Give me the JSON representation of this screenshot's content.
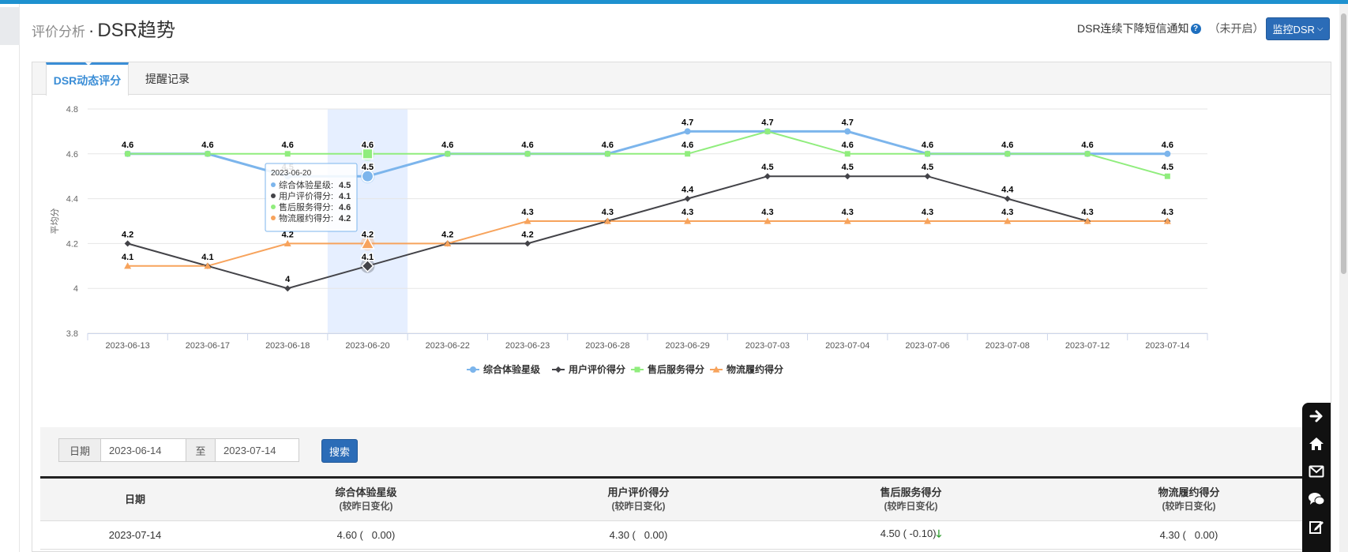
{
  "header": {
    "sub_title": "评价分析",
    "separator": "·",
    "title": "DSR趋势",
    "notify_label": "DSR连续下降短信通知",
    "notify_state": "（未开启）",
    "monitor_button": "监控DSR"
  },
  "tabs": [
    {
      "label": "DSR动态评分",
      "active": true
    },
    {
      "label": "提醒记录",
      "active": false
    }
  ],
  "chart_data": {
    "type": "line",
    "ylabel": "平均分",
    "ylim": [
      3.8,
      4.8
    ],
    "yticks": [
      3.8,
      4,
      4.2,
      4.4,
      4.6,
      4.8
    ],
    "ytick_labels": [
      "3.8",
      "4",
      "4.2",
      "4.4",
      "4.6",
      "4.8"
    ],
    "categories": [
      "2023-06-13",
      "2023-06-17",
      "2023-06-18",
      "2023-06-20",
      "2023-06-22",
      "2023-06-23",
      "2023-06-28",
      "2023-06-29",
      "2023-07-03",
      "2023-07-04",
      "2023-07-06",
      "2023-07-08",
      "2023-07-12",
      "2023-07-14"
    ],
    "grid": true,
    "legend_position": "bottom",
    "highlight_index": 3,
    "series": [
      {
        "name": "综合体验星级",
        "color": "#7cb5ec",
        "marker": "circle",
        "values": [
          4.6,
          4.6,
          4.5,
          4.5,
          4.6,
          4.6,
          4.6,
          4.7,
          4.7,
          4.7,
          4.6,
          4.6,
          4.6,
          4.6
        ]
      },
      {
        "name": "用户评价得分",
        "color": "#434348",
        "marker": "diamond",
        "values": [
          4.2,
          4.1,
          4.0,
          4.1,
          4.2,
          4.2,
          4.3,
          4.4,
          4.5,
          4.5,
          4.5,
          4.4,
          4.3,
          4.3
        ]
      },
      {
        "name": "售后服务得分",
        "color": "#90ed7d",
        "marker": "square",
        "values": [
          4.6,
          4.6,
          4.6,
          4.6,
          4.6,
          4.6,
          4.6,
          4.6,
          4.7,
          4.6,
          4.6,
          4.6,
          4.6,
          4.5
        ]
      },
      {
        "name": "物流履约得分",
        "color": "#f7a35c",
        "marker": "triangle",
        "values": [
          4.1,
          4.1,
          4.2,
          4.2,
          4.2,
          4.3,
          4.3,
          4.3,
          4.3,
          4.3,
          4.3,
          4.3,
          4.3,
          4.3
        ]
      }
    ],
    "tooltip": {
      "title": "2023-06-20",
      "rows": [
        {
          "label": "综合体验星级",
          "value": "4.5"
        },
        {
          "label": "用户评价得分",
          "value": "4.1"
        },
        {
          "label": "售后服务得分",
          "value": "4.6"
        },
        {
          "label": "物流履约得分",
          "value": "4.2"
        }
      ]
    }
  },
  "filter": {
    "date_label": "日期",
    "to_label": "至",
    "start_date": "2023-06-14",
    "end_date": "2023-07-14",
    "search_button": "搜索"
  },
  "table": {
    "headers": [
      {
        "title": "日期",
        "sub": ""
      },
      {
        "title": "综合体验星级",
        "sub": "(较昨日变化)"
      },
      {
        "title": "用户评价得分",
        "sub": "(较昨日变化)"
      },
      {
        "title": "售后服务得分",
        "sub": "(较昨日变化)"
      },
      {
        "title": "物流履约得分",
        "sub": "(较昨日变化)"
      }
    ],
    "rows": [
      {
        "date": "2023-07-14",
        "c1": "4.60 (   0.00)",
        "c2": "4.30 (   0.00)",
        "c3": "4.50 ( -0.10)",
        "c3_arrow": "🡓",
        "c4": "4.30 (   0.00)"
      }
    ]
  },
  "side_tools": [
    "arrow-right-icon",
    "home-icon",
    "mail-icon",
    "chat-icon",
    "edit-icon"
  ]
}
